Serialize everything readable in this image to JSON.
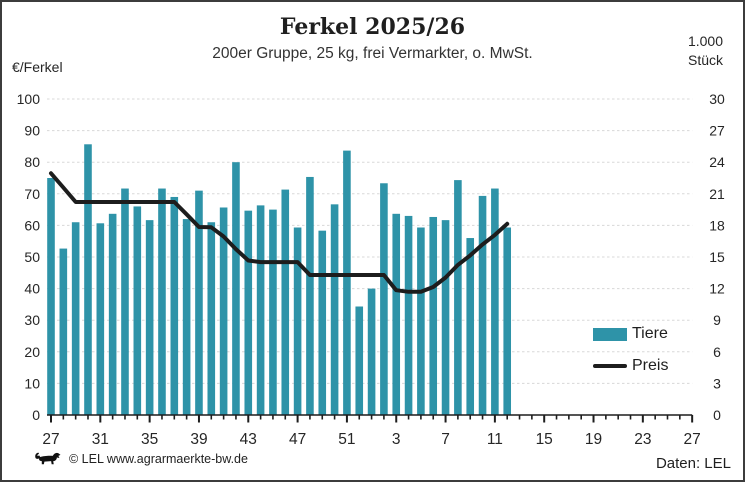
{
  "header": {
    "title": "Ferkel 2025/26",
    "subtitle": "200er Gruppe, 25 kg, frei Vermarkter, o. MwSt."
  },
  "axes": {
    "left_unit": "€/Ferkel",
    "right_unit_line1": "1.000",
    "right_unit_line2": "Stück",
    "left_ticks": [
      0,
      10,
      20,
      30,
      40,
      50,
      60,
      70,
      80,
      90,
      100
    ],
    "right_ticks": [
      0,
      3,
      6,
      9,
      12,
      15,
      18,
      21,
      24,
      27,
      30
    ],
    "x_tick_labels": [
      "27",
      "31",
      "35",
      "39",
      "43",
      "47",
      "51",
      "3",
      "7",
      "11",
      "15",
      "19",
      "23",
      "27"
    ]
  },
  "legend": {
    "bar_label": "Tiere",
    "line_label": "Preis"
  },
  "footer": {
    "copyright": "© LEL www.agrarmaerkte-bw.de",
    "source": "Daten: LEL"
  },
  "colors": {
    "bars": "#2e93a8",
    "line": "#1d1d1d",
    "grid": "#d8d8d8",
    "axis": "#1d1d1d",
    "text": "#262626",
    "border": "#3c3c3c"
  },
  "chart_data": {
    "type": "bar",
    "title": "Ferkel 2025/26",
    "subtitle": "200er Gruppe, 25 kg, frei Vermarkter, o. MwSt.",
    "x_weeks": [
      27,
      28,
      29,
      30,
      31,
      32,
      33,
      34,
      35,
      36,
      37,
      38,
      39,
      40,
      41,
      42,
      43,
      44,
      45,
      46,
      47,
      48,
      49,
      50,
      51,
      52,
      1,
      2,
      3,
      4,
      5,
      6,
      7,
      8,
      9,
      10,
      11,
      12
    ],
    "series": [
      {
        "name": "Tiere",
        "type": "bar",
        "axis": "right",
        "unit": "1.000 Stück",
        "values": [
          22.5,
          15.8,
          18.3,
          25.7,
          18.2,
          19.1,
          21.5,
          19.8,
          18.5,
          21.5,
          20.7,
          18.6,
          21.3,
          18.3,
          19.7,
          24.0,
          19.4,
          19.9,
          19.5,
          21.4,
          17.8,
          22.6,
          17.5,
          20.0,
          25.1,
          10.3,
          12.0,
          22.0,
          19.1,
          18.9,
          17.8,
          18.8,
          18.5,
          22.3,
          16.8,
          20.8,
          21.5,
          17.8
        ]
      },
      {
        "name": "Preis",
        "type": "line",
        "axis": "left",
        "unit": "€/Ferkel",
        "values": [
          76.5,
          72.0,
          67.4,
          67.4,
          67.4,
          67.4,
          67.4,
          67.4,
          67.4,
          67.4,
          67.4,
          63.5,
          59.5,
          59.4,
          56.5,
          52.5,
          48.9,
          48.4,
          48.4,
          48.4,
          48.4,
          44.3,
          44.3,
          44.3,
          44.3,
          44.3,
          44.3,
          44.3,
          39.5,
          39.0,
          39.0,
          40.5,
          43.5,
          47.5,
          50.5,
          54.0,
          57.0,
          60.5
        ]
      }
    ],
    "left_axis": {
      "label": "€/Ferkel",
      "range": [
        0,
        100
      ],
      "step": 10
    },
    "right_axis": {
      "label": "1.000 Stück",
      "range": [
        0,
        30
      ],
      "step": 3
    },
    "x_axis": {
      "tick_every_weeks": 1,
      "label_every_weeks": 4,
      "labeled_ticks": [
        "27",
        "31",
        "35",
        "39",
        "43",
        "47",
        "51",
        "3",
        "7",
        "11",
        "15",
        "19",
        "23",
        "27"
      ],
      "total_week_positions": 53
    },
    "grid": "horizontal dashed",
    "legend_position": "right middle"
  }
}
